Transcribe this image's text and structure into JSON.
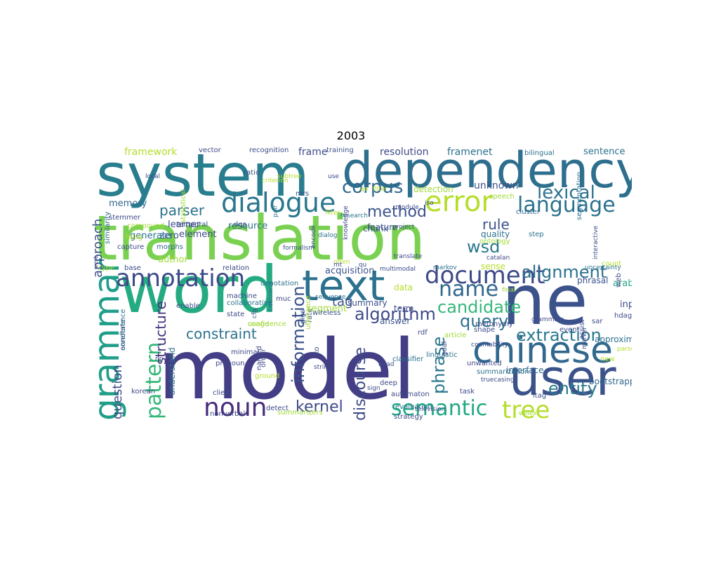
{
  "title": "2003",
  "words": [
    {
      "text": "model",
      "color": "#433e85"
    },
    {
      "text": "translation",
      "color": "#7ad151"
    },
    {
      "text": "word",
      "color": "#25ab82"
    },
    {
      "text": "system",
      "color": "#287d8e"
    },
    {
      "text": "dependency",
      "color": "#2e6f8e"
    },
    {
      "text": "ne",
      "color": "#3b528b"
    },
    {
      "text": "text",
      "color": "#2c728e"
    },
    {
      "text": "user",
      "color": "#3b528b"
    },
    {
      "text": "chinese",
      "color": "#31688e"
    },
    {
      "text": "grammar",
      "color": "#1f9e89"
    },
    {
      "text": "annotation",
      "color": "#3e4a89"
    },
    {
      "text": "dialogue",
      "color": "#2a788e"
    },
    {
      "text": "document",
      "color": "#3e4a89"
    },
    {
      "text": "language",
      "color": "#2c728e"
    },
    {
      "text": "error",
      "color": "#b5de2b"
    },
    {
      "text": "noun",
      "color": "#472d7b"
    },
    {
      "text": "pattern",
      "color": "#35b779"
    },
    {
      "text": "name",
      "color": "#31688e"
    },
    {
      "text": "semantic",
      "color": "#22a884"
    },
    {
      "text": "tree",
      "color": "#b5de2b"
    },
    {
      "text": "corpus",
      "color": "#31688e"
    },
    {
      "text": "alignment",
      "color": "#2c728e"
    },
    {
      "text": "extraction",
      "color": "#2a788e"
    },
    {
      "text": "information",
      "color": "#3b528b"
    },
    {
      "text": "algorithm",
      "color": "#3e4a89"
    },
    {
      "text": "candidate",
      "color": "#35b779"
    },
    {
      "text": "discourse",
      "color": "#3e4a89"
    },
    {
      "text": "entity",
      "color": "#2a788e"
    },
    {
      "text": "phrase",
      "color": "#2a788e"
    },
    {
      "text": "kernel",
      "color": "#3e4a89"
    },
    {
      "text": "lexical",
      "color": "#2c728e"
    },
    {
      "text": "query",
      "color": "#2c728e"
    },
    {
      "text": "wsd",
      "color": "#2a788e"
    },
    {
      "text": "method",
      "color": "#3b528b"
    },
    {
      "text": "parser",
      "color": "#2c728e"
    },
    {
      "text": "constraint",
      "color": "#2c728e"
    },
    {
      "text": "question",
      "color": "#3e4a89"
    },
    {
      "text": "structure",
      "color": "#46327e"
    },
    {
      "text": "rule",
      "color": "#3b528b"
    },
    {
      "text": "tag",
      "color": "#3b528b"
    },
    {
      "text": "approach",
      "color": "#3b528b"
    },
    {
      "text": "resolution",
      "color": "#3e4a89"
    },
    {
      "text": "framenet",
      "color": "#2c728e"
    },
    {
      "text": "framework",
      "color": "#b5de2b"
    },
    {
      "text": "sentence",
      "color": "#2c728e"
    },
    {
      "text": "frame",
      "color": "#3e4a89"
    },
    {
      "text": "unknown",
      "color": "#3b528b"
    },
    {
      "text": "detection",
      "color": "#a0da39"
    },
    {
      "text": "feature",
      "color": "#3b528b"
    },
    {
      "text": "acquisition",
      "color": "#3b528b"
    },
    {
      "text": "summary",
      "color": "#3b528b"
    },
    {
      "text": "answer",
      "color": "#3b528b"
    },
    {
      "text": "term",
      "color": "#3e4a89"
    },
    {
      "text": "segment",
      "color": "#a0da39"
    },
    {
      "text": "input",
      "color": "#3e4a89"
    },
    {
      "text": "arabic",
      "color": "#22a884"
    },
    {
      "text": "phrasal",
      "color": "#3b528b"
    },
    {
      "text": "interface",
      "color": "#31688e"
    },
    {
      "text": "bootstrapping",
      "color": "#31688e"
    },
    {
      "text": "approximation",
      "color": "#2c728e"
    },
    {
      "text": "understand",
      "color": "#2c728e"
    },
    {
      "text": "memory",
      "color": "#31688e"
    },
    {
      "text": "learner",
      "color": "#3e4a89"
    },
    {
      "text": "zero",
      "color": "#3b528b"
    },
    {
      "text": "generate",
      "color": "#2c728e"
    },
    {
      "text": "resource",
      "color": "#2c728e"
    },
    {
      "text": "author",
      "color": "#a0da39"
    },
    {
      "text": "element",
      "color": "#3e4a89"
    },
    {
      "text": "quality",
      "color": "#2c728e"
    },
    {
      "text": "chunk",
      "color": "#3b528b"
    },
    {
      "text": "data",
      "color": "#b5de2b"
    },
    {
      "text": "sense",
      "color": "#b5de2b"
    },
    {
      "text": "training",
      "color": "#3b528b"
    },
    {
      "text": "recognition",
      "color": "#3e4a89"
    },
    {
      "text": "vector",
      "color": "#3e4a89"
    },
    {
      "text": "statistical",
      "color": "#a0da39"
    },
    {
      "text": "similarity",
      "color": "#31688e"
    },
    {
      "text": "stemmer",
      "color": "#3e4a89"
    },
    {
      "text": "ratio",
      "color": "#3b528b"
    },
    {
      "text": "bilingual",
      "color": "#2c728e"
    },
    {
      "text": "speech",
      "color": "#a0da39"
    },
    {
      "text": "cluster",
      "color": "#31688e"
    },
    {
      "text": "segmentation",
      "color": "#2c728e"
    },
    {
      "text": "interactive",
      "color": "#3b528b"
    },
    {
      "text": "step",
      "color": "#2c728e"
    },
    {
      "text": "ontology",
      "color": "#a0da39"
    },
    {
      "text": "module",
      "color": "#3e4a89"
    },
    {
      "text": "iso",
      "color": "#3e4a89"
    },
    {
      "text": "mrs",
      "color": "#3b528b"
    },
    {
      "text": "research",
      "color": "#2c728e"
    },
    {
      "text": "project",
      "color": "#3e4a89"
    },
    {
      "text": "knowledge",
      "color": "#3e4a89"
    },
    {
      "text": "dialog",
      "color": "#2c728e"
    },
    {
      "text": "pair",
      "color": "#2c728e"
    },
    {
      "text": "formalism",
      "color": "#3b528b"
    },
    {
      "text": "encode",
      "color": "#3e4a89"
    },
    {
      "text": "morphs",
      "color": "#31688e"
    },
    {
      "text": "capture",
      "color": "#3e4a89"
    },
    {
      "text": "compound",
      "color": "#a0da39"
    },
    {
      "text": "hpsg",
      "color": "#b5de2b"
    },
    {
      "text": "type",
      "color": "#b5de2b"
    },
    {
      "text": "base",
      "color": "#3e4a89"
    },
    {
      "text": "relation",
      "color": "#3e4a89"
    },
    {
      "text": "denotation",
      "color": "#2c728e"
    },
    {
      "text": "collaborative",
      "color": "#2c728e"
    },
    {
      "text": "state",
      "color": "#3e4a89"
    },
    {
      "text": "machine",
      "color": "#3e4a89"
    },
    {
      "text": "cebuano",
      "color": "#2c728e"
    },
    {
      "text": "enable",
      "color": "#3e4a89"
    },
    {
      "text": "temporal",
      "color": "#3b528b"
    },
    {
      "text": "dqs",
      "color": "#3e4a89"
    },
    {
      "text": "muc",
      "color": "#3e4a89"
    },
    {
      "text": "confidence",
      "color": "#a0da39"
    },
    {
      "text": "gigs",
      "color": "#3b528b"
    },
    {
      "text": "wireless",
      "color": "#3b528b"
    },
    {
      "text": "translate",
      "color": "#3e4a89"
    },
    {
      "text": "markov",
      "color": "#2c728e"
    },
    {
      "text": "multimodal",
      "color": "#3e4a89"
    },
    {
      "text": "sequence",
      "color": "#2c728e"
    },
    {
      "text": "final",
      "color": "#a0da39"
    },
    {
      "text": "catalan",
      "color": "#3e4a89"
    },
    {
      "text": "count",
      "color": "#b5de2b"
    },
    {
      "text": "hdag",
      "color": "#3e4a89"
    },
    {
      "text": "web",
      "color": "#3e4a89"
    },
    {
      "text": "event",
      "color": "#3e4a89"
    },
    {
      "text": "grammars",
      "color": "#3e4a89"
    },
    {
      "text": "uncertainty",
      "color": "#2c728e"
    },
    {
      "text": "sar",
      "color": "#3e4a89"
    },
    {
      "text": "new",
      "color": "#b5de2b"
    },
    {
      "text": "parse",
      "color": "#b5de2b"
    },
    {
      "text": "assist",
      "color": "#3e4a89"
    },
    {
      "text": "marker",
      "color": "#3e4a89"
    },
    {
      "text": "willex",
      "color": "#a0da39"
    },
    {
      "text": "task",
      "color": "#3e4a89"
    },
    {
      "text": "itag",
      "color": "#3b528b"
    },
    {
      "text": "summarization",
      "color": "#2c728e"
    },
    {
      "text": "truecasing",
      "color": "#3e4a89"
    },
    {
      "text": "unwanted",
      "color": "#3e4a89"
    },
    {
      "text": "countability",
      "color": "#3e4a89"
    },
    {
      "text": "shape",
      "color": "#3e4a89"
    },
    {
      "text": "metonymy",
      "color": "#3e4a89"
    },
    {
      "text": "article",
      "color": "#a0da39"
    },
    {
      "text": "rdf",
      "color": "#3e4a89"
    },
    {
      "text": "linguistic",
      "color": "#2c728e"
    },
    {
      "text": "goal",
      "color": "#3e4a89"
    },
    {
      "text": "classifier",
      "color": "#2c728e"
    },
    {
      "text": "head",
      "color": "#3e4a89"
    },
    {
      "text": "deep",
      "color": "#3e4a89"
    },
    {
      "text": "sign",
      "color": "#3e4a89"
    },
    {
      "text": "automaton",
      "color": "#3e4a89"
    },
    {
      "text": "evaluation",
      "color": "#2c728e"
    },
    {
      "text": "television",
      "color": "#3e4a89"
    },
    {
      "text": "strategy",
      "color": "#3e4a89"
    },
    {
      "text": "string",
      "color": "#3e4a89"
    },
    {
      "text": "ko",
      "color": "#3e4a89"
    },
    {
      "text": "rate",
      "color": "#3e4a89"
    },
    {
      "text": "utterance",
      "color": "#a0da39"
    },
    {
      "text": "cfg",
      "color": "#3e4a89"
    },
    {
      "text": "usage",
      "color": "#a0da39"
    },
    {
      "text": "minimal",
      "color": "#3e4a89"
    },
    {
      "text": "pronoun",
      "color": "#3e4a89"
    },
    {
      "text": "order",
      "color": "#3e4a89"
    },
    {
      "text": "ground",
      "color": "#b5de2b"
    },
    {
      "text": "client",
      "color": "#3e4a89"
    },
    {
      "text": "nonverbal",
      "color": "#3e4a89"
    },
    {
      "text": "summarizers",
      "color": "#a0da39"
    },
    {
      "text": "detect",
      "color": "#3e4a89"
    },
    {
      "text": "named",
      "color": "#3e4a89"
    },
    {
      "text": "annotate",
      "color": "#3e4a89"
    },
    {
      "text": "coreference",
      "color": "#2c728e"
    },
    {
      "text": "korean",
      "color": "#3e4a89"
    },
    {
      "text": "np",
      "color": "#3e4a89"
    },
    {
      "text": "verb",
      "color": "#3e4a89"
    },
    {
      "text": "local",
      "color": "#3e4a89"
    },
    {
      "text": "criterion",
      "color": "#b5de2b"
    },
    {
      "text": "subtree",
      "color": "#b5de2b"
    },
    {
      "text": "ou",
      "color": "#3e4a89"
    },
    {
      "text": "often",
      "color": "#b5de2b"
    },
    {
      "text": "use",
      "color": "#3e4a89"
    },
    {
      "text": "filter",
      "color": "#b5de2b"
    },
    {
      "text": "mt",
      "color": "#3e4a89"
    },
    {
      "text": "qa",
      "color": "#b5de2b"
    },
    {
      "text": "filter",
      "color": "#b5de2b"
    }
  ]
}
